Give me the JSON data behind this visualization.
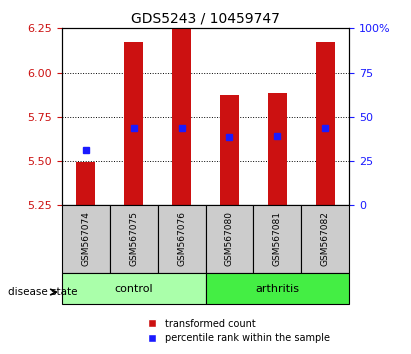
{
  "title": "GDS5243 / 10459747",
  "samples": [
    "GSM567074",
    "GSM567075",
    "GSM567076",
    "GSM567080",
    "GSM567081",
    "GSM567082"
  ],
  "group_labels": [
    "control",
    "arthritis"
  ],
  "bar_tops": [
    5.495,
    6.17,
    6.25,
    5.875,
    5.885,
    6.17
  ],
  "bar_base": 5.25,
  "percentile_vals": [
    5.565,
    5.685,
    5.685,
    5.635,
    5.64,
    5.685
  ],
  "ylim_left": [
    5.25,
    6.25
  ],
  "ylim_right": [
    0,
    100
  ],
  "yticks_left": [
    5.25,
    5.5,
    5.75,
    6.0,
    6.25
  ],
  "yticks_right": [
    0,
    25,
    50,
    75,
    100
  ],
  "bar_color": "#cc1111",
  "dot_color": "#1a1aff",
  "control_color": "#aaffaa",
  "arthritis_color": "#44ee44",
  "group_bg_color": "#cccccc",
  "legend_red_label": "transformed count",
  "legend_blue_label": "percentile rank within the sample",
  "disease_state_label": "disease state",
  "bar_width": 0.4
}
